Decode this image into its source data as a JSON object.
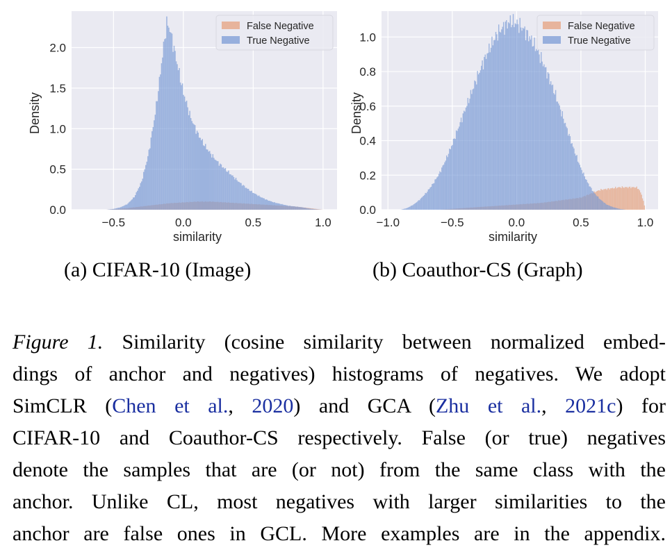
{
  "chart_data": [
    {
      "type": "histogram",
      "xlabel": "similarity",
      "ylabel": "Density",
      "xlim": [
        -0.8,
        1.1
      ],
      "ylim": [
        0,
        2.45
      ],
      "xticks": [
        -0.5,
        0.0,
        0.5,
        1.0
      ],
      "xtick_labels": [
        "−0.5",
        "0.0",
        "0.5",
        "1.0"
      ],
      "yticks": [
        0.0,
        0.5,
        1.0,
        1.5,
        2.0
      ],
      "ytick_labels": [
        "0.0",
        "0.5",
        "1.0",
        "1.5",
        "2.0"
      ],
      "grid": true,
      "legend_position": "top-right",
      "subcaption": "(a)  CIFAR-10 (Image)",
      "series": [
        {
          "name": "False Negative",
          "color": "#e6a27f",
          "points": [
            [
              -0.55,
              0
            ],
            [
              -0.4,
              0.02
            ],
            [
              -0.3,
              0.04
            ],
            [
              -0.2,
              0.06
            ],
            [
              -0.1,
              0.08
            ],
            [
              0.0,
              0.09
            ],
            [
              0.1,
              0.1
            ],
            [
              0.2,
              0.1
            ],
            [
              0.3,
              0.09
            ],
            [
              0.4,
              0.08
            ],
            [
              0.5,
              0.07
            ],
            [
              0.6,
              0.06
            ],
            [
              0.7,
              0.05
            ],
            [
              0.8,
              0.04
            ],
            [
              0.9,
              0.02
            ],
            [
              0.95,
              0.01
            ],
            [
              1.0,
              0
            ]
          ]
        },
        {
          "name": "True Negative",
          "color": "#7b9bd6",
          "points": [
            [
              -0.55,
              0
            ],
            [
              -0.5,
              0.01
            ],
            [
              -0.45,
              0.03
            ],
            [
              -0.4,
              0.07
            ],
            [
              -0.35,
              0.16
            ],
            [
              -0.3,
              0.34
            ],
            [
              -0.25,
              0.68
            ],
            [
              -0.2,
              1.2
            ],
            [
              -0.17,
              1.6
            ],
            [
              -0.15,
              1.9
            ],
            [
              -0.13,
              2.15
            ],
            [
              -0.12,
              2.3
            ],
            [
              -0.1,
              2.25
            ],
            [
              -0.08,
              2.1
            ],
            [
              -0.05,
              1.85
            ],
            [
              0.0,
              1.45
            ],
            [
              0.05,
              1.15
            ],
            [
              0.1,
              0.95
            ],
            [
              0.15,
              0.8
            ],
            [
              0.2,
              0.68
            ],
            [
              0.25,
              0.58
            ],
            [
              0.3,
              0.5
            ],
            [
              0.35,
              0.42
            ],
            [
              0.4,
              0.34
            ],
            [
              0.45,
              0.27
            ],
            [
              0.5,
              0.21
            ],
            [
              0.55,
              0.16
            ],
            [
              0.6,
              0.12
            ],
            [
              0.65,
              0.09
            ],
            [
              0.7,
              0.07
            ],
            [
              0.75,
              0.05
            ],
            [
              0.8,
              0.04
            ],
            [
              0.85,
              0.03
            ],
            [
              0.9,
              0.015
            ],
            [
              0.95,
              0.005
            ],
            [
              1.0,
              0
            ]
          ]
        }
      ]
    },
    {
      "type": "histogram",
      "xlabel": "similarity",
      "ylabel": "Density",
      "xlim": [
        -1.05,
        1.1
      ],
      "ylim": [
        0,
        1.15
      ],
      "xticks": [
        -1.0,
        -0.5,
        0.0,
        0.5,
        1.0
      ],
      "xtick_labels": [
        "−1.0",
        "−0.5",
        "0.0",
        "0.5",
        "1.0"
      ],
      "yticks": [
        0.0,
        0.2,
        0.4,
        0.6,
        0.8,
        1.0
      ],
      "ytick_labels": [
        "0.0",
        "0.2",
        "0.4",
        "0.6",
        "0.8",
        "1.0"
      ],
      "grid": true,
      "legend_position": "top-right",
      "subcaption": "(b)  Coauthor-CS (Graph)",
      "series": [
        {
          "name": "False Negative",
          "color": "#e6a27f",
          "points": [
            [
              -0.6,
              0
            ],
            [
              -0.5,
              0.005
            ],
            [
              -0.4,
              0.01
            ],
            [
              -0.3,
              0.015
            ],
            [
              -0.2,
              0.02
            ],
            [
              -0.1,
              0.025
            ],
            [
              0.0,
              0.03
            ],
            [
              0.1,
              0.035
            ],
            [
              0.2,
              0.04
            ],
            [
              0.3,
              0.05
            ],
            [
              0.4,
              0.06
            ],
            [
              0.5,
              0.07
            ],
            [
              0.55,
              0.085
            ],
            [
              0.6,
              0.1
            ],
            [
              0.65,
              0.115
            ],
            [
              0.7,
              0.12
            ],
            [
              0.75,
              0.125
            ],
            [
              0.8,
              0.13
            ],
            [
              0.85,
              0.13
            ],
            [
              0.9,
              0.13
            ],
            [
              0.93,
              0.13
            ],
            [
              0.95,
              0.12
            ],
            [
              0.97,
              0.09
            ],
            [
              0.99,
              0.04
            ],
            [
              1.0,
              0
            ]
          ]
        },
        {
          "name": "True Negative",
          "color": "#7b9bd6",
          "points": [
            [
              -0.9,
              0
            ],
            [
              -0.85,
              0.01
            ],
            [
              -0.8,
              0.03
            ],
            [
              -0.75,
              0.06
            ],
            [
              -0.7,
              0.1
            ],
            [
              -0.65,
              0.15
            ],
            [
              -0.6,
              0.21
            ],
            [
              -0.55,
              0.29
            ],
            [
              -0.5,
              0.38
            ],
            [
              -0.45,
              0.48
            ],
            [
              -0.4,
              0.58
            ],
            [
              -0.35,
              0.68
            ],
            [
              -0.3,
              0.78
            ],
            [
              -0.25,
              0.87
            ],
            [
              -0.2,
              0.95
            ],
            [
              -0.15,
              1.02
            ],
            [
              -0.1,
              1.06
            ],
            [
              -0.05,
              1.09
            ],
            [
              0.0,
              1.08
            ],
            [
              0.05,
              1.05
            ],
            [
              0.1,
              1.0
            ],
            [
              0.15,
              0.94
            ],
            [
              0.2,
              0.86
            ],
            [
              0.25,
              0.77
            ],
            [
              0.3,
              0.67
            ],
            [
              0.35,
              0.56
            ],
            [
              0.4,
              0.45
            ],
            [
              0.45,
              0.34
            ],
            [
              0.5,
              0.24
            ],
            [
              0.55,
              0.16
            ],
            [
              0.6,
              0.1
            ],
            [
              0.65,
              0.06
            ],
            [
              0.7,
              0.03
            ],
            [
              0.75,
              0.015
            ],
            [
              0.8,
              0.005
            ],
            [
              0.85,
              0
            ]
          ]
        }
      ]
    }
  ],
  "caption": {
    "label": "Figure 1.",
    "lines": [
      " Similarity (cosine similarity between normalized embed-",
      "dings of anchor and negatives) histograms of negatives. We adopt",
      "SimCLR (|Chen et al.|, |2020|) and GCA (|Zhu et al.|, |2021c|) for",
      "CIFAR-10 and Coauthor-CS respectively. False (or true) negatives",
      "denote the samples that are (or not) from the same class with the",
      "anchor. Unlike CL, most negatives with larger similarities to the",
      "anchor are false ones in GCL. More examples are in the appendix."
    ]
  }
}
